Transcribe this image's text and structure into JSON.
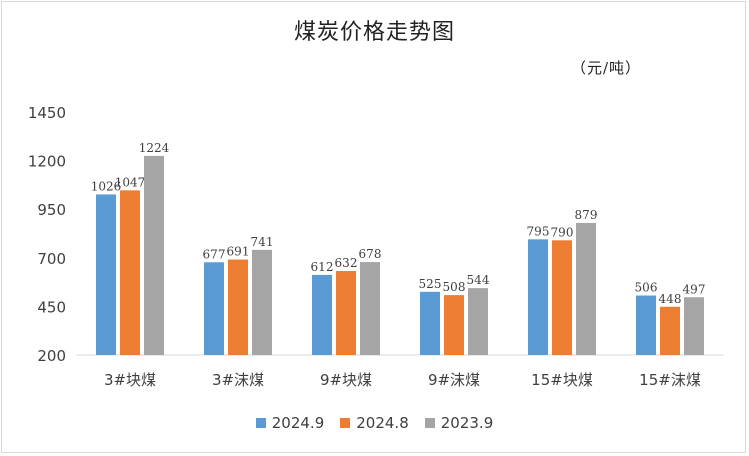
{
  "chart_data": {
    "type": "bar",
    "title": "煤炭价格走势图",
    "unit": "（元/吨）",
    "categories": [
      "3#块煤",
      "3#沫煤",
      "9#块煤",
      "9#沫煤",
      "15#块煤",
      "15#沫煤"
    ],
    "series": [
      {
        "name": "2024.9",
        "color": "#5b9bd5",
        "values": [
          1026,
          677,
          612,
          525,
          795,
          506
        ]
      },
      {
        "name": "2024.8",
        "color": "#ed7d31",
        "values": [
          1047,
          691,
          632,
          508,
          790,
          448
        ]
      },
      {
        "name": "2023.9",
        "color": "#a5a5a5",
        "values": [
          1224,
          741,
          678,
          544,
          879,
          497
        ]
      }
    ],
    "ylim": [
      200,
      1450
    ],
    "yticks": [
      200,
      450,
      700,
      950,
      1200,
      1450
    ],
    "grid": false,
    "legend_position": "bottom"
  }
}
